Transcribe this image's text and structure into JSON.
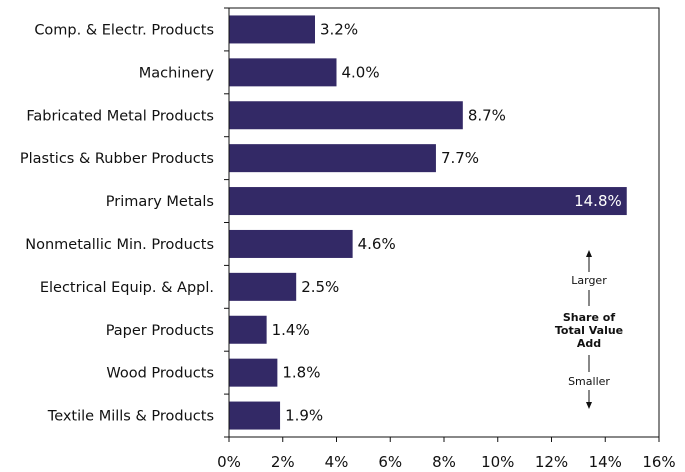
{
  "chart_data": {
    "type": "bar",
    "orientation": "horizontal",
    "categories": [
      "Comp. & Electr. Products",
      "Machinery",
      "Fabricated Metal Products",
      "Plastics & Rubber Products",
      "Primary Metals",
      "Nonmetallic Min. Products",
      "Electrical Equip. & Appl.",
      "Paper Products",
      "Wood Products",
      "Textile Mills & Products"
    ],
    "values": [
      3.2,
      4.0,
      8.7,
      7.7,
      14.8,
      4.6,
      2.5,
      1.4,
      1.8,
      1.9
    ],
    "value_labels": [
      "3.2%",
      "4.0%",
      "8.7%",
      "7.7%",
      "14.8%",
      "4.6%",
      "2.5%",
      "1.4%",
      "1.8%",
      "1.9%"
    ],
    "xlim": [
      0,
      16
    ],
    "x_ticks": [
      "0%",
      "2%",
      "4%",
      "6%",
      "8%",
      "10%",
      "12%",
      "14%",
      "16%"
    ],
    "grid": false,
    "bar_color": "#332966",
    "annotation": {
      "top": "Larger",
      "title_lines": [
        "Share of",
        "Total Value",
        "Add"
      ],
      "bottom": "Smaller"
    }
  }
}
